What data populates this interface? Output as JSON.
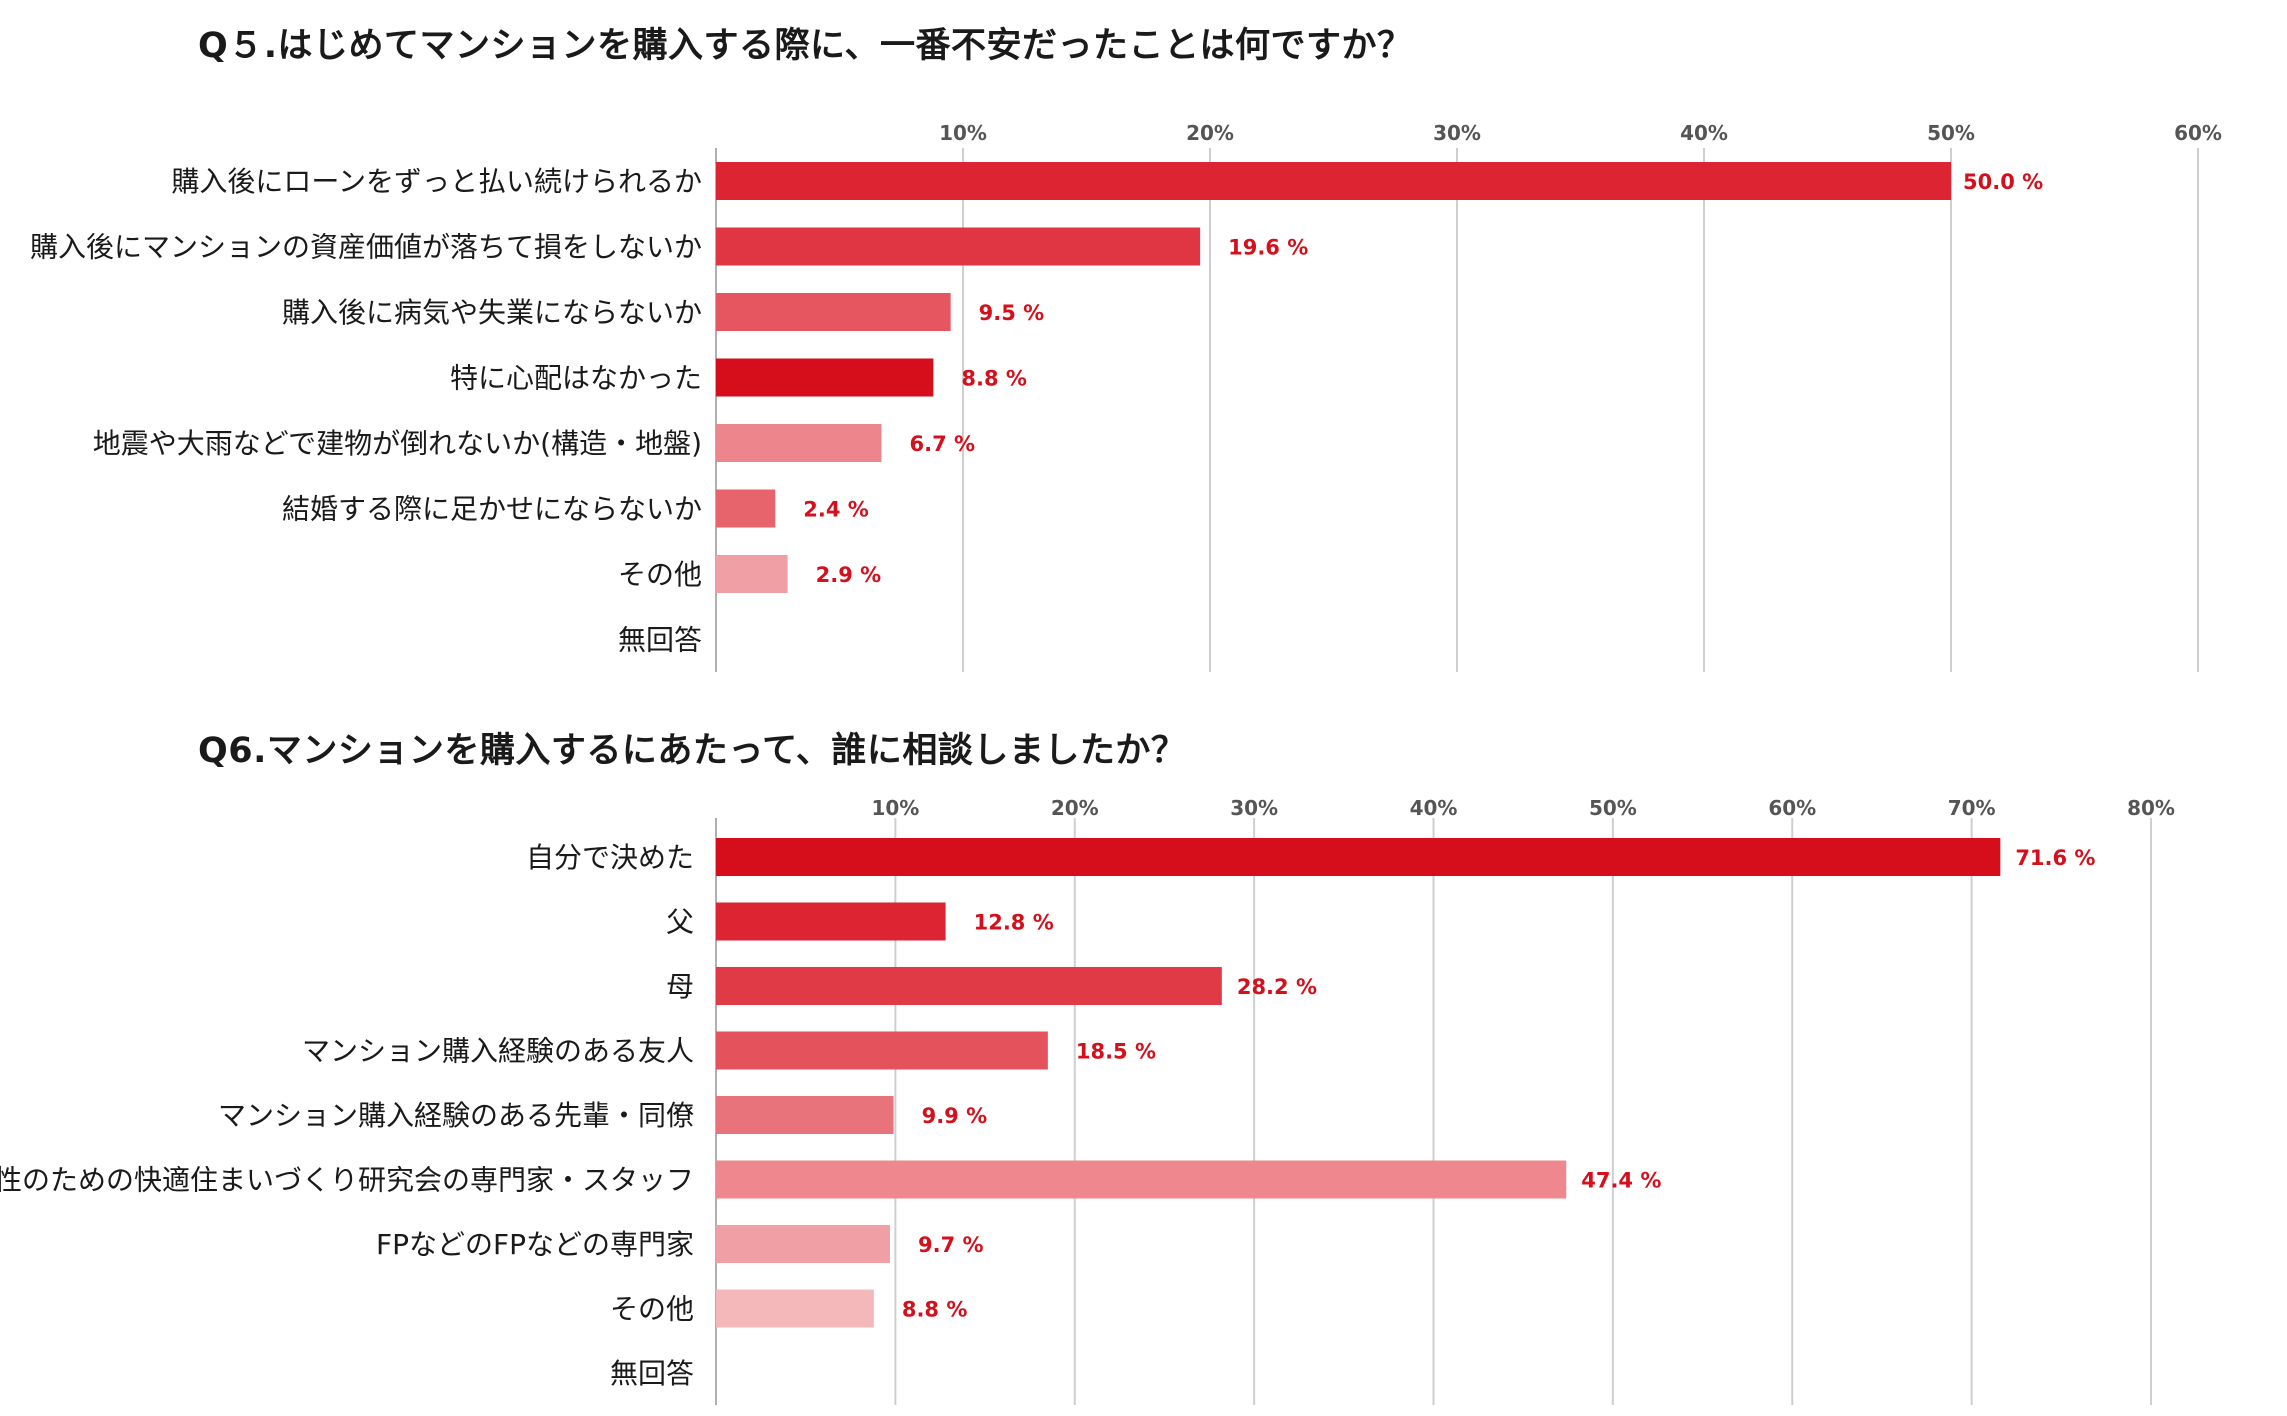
{
  "chart_data": [
    {
      "type": "bar",
      "orientation": "horizontal",
      "title": "Q５.はじめてマンションを購入する際に、一番不安だったことは何ですか？",
      "categories": [
        "購入後にローンをずっと払い続けられるか",
        "購入後にマンションの資産価値が落ちて損をしないか",
        "購入後に病気や失業にならないか",
        "特に心配はなかった",
        "地震や大雨などで建物が倒れないか(構造・地盤)",
        "結婚する際に足かせにならないか",
        "その他",
        "無回答"
      ],
      "values": [
        50.0,
        19.6,
        9.5,
        8.8,
        6.7,
        2.4,
        2.9,
        null
      ],
      "value_labels": [
        "50.0 %",
        "19.6 %",
        "9.5 %",
        "8.8 %",
        "6.7 %",
        "2.4 %",
        "2.9 %",
        ""
      ],
      "bar_colors": [
        "#dc2433",
        "#e03542",
        "#e55660",
        "#d60e1b",
        "#ec858c",
        "#e7646d",
        "#f0a0a5",
        "#f0a0a5"
      ],
      "xlim": [
        0,
        60
      ],
      "xticks": [
        "10%",
        "20%",
        "30%",
        "40%",
        "50%",
        "60%"
      ],
      "xtick_values": [
        10,
        20,
        30,
        40,
        50,
        60
      ],
      "grid": true,
      "legend": "none",
      "value_label_color": "#d4101c"
    },
    {
      "type": "bar",
      "orientation": "horizontal",
      "title": "Q6.マンションを購入するにあたって、誰に相談しましたか？",
      "categories": [
        "自分で決めた",
        "父",
        "母",
        "マンション購入経験のある友人",
        "マンション購入経験のある先輩・同僚",
        "女性のための快適住まいづくり研究会の専門家・スタッフ",
        "FPなどのFPなどの専門家",
        "その他",
        "無回答"
      ],
      "values": [
        71.6,
        12.8,
        28.2,
        18.5,
        9.9,
        47.4,
        9.7,
        8.8,
        null
      ],
      "value_labels": [
        "71.6 %",
        "12.8 %",
        "28.2 %",
        "18.5 %",
        "9.9 %",
        "47.4 %",
        "9.7 %",
        "8.8 %",
        ""
      ],
      "bar_colors": [
        "#d60e1b",
        "#dc2433",
        "#e03a47",
        "#e4525c",
        "#e9737b",
        "#ee878e",
        "#f0a0a5",
        "#f4b8bb",
        "#f4b8bb"
      ],
      "xlim": [
        0,
        80
      ],
      "xticks": [
        "10%",
        "20%",
        "30%",
        "40%",
        "50%",
        "60%",
        "70%",
        "80%"
      ],
      "xtick_values": [
        10,
        20,
        30,
        40,
        50,
        60,
        70,
        80
      ],
      "grid": true,
      "legend": "none",
      "value_label_color": "#d4101c"
    }
  ]
}
